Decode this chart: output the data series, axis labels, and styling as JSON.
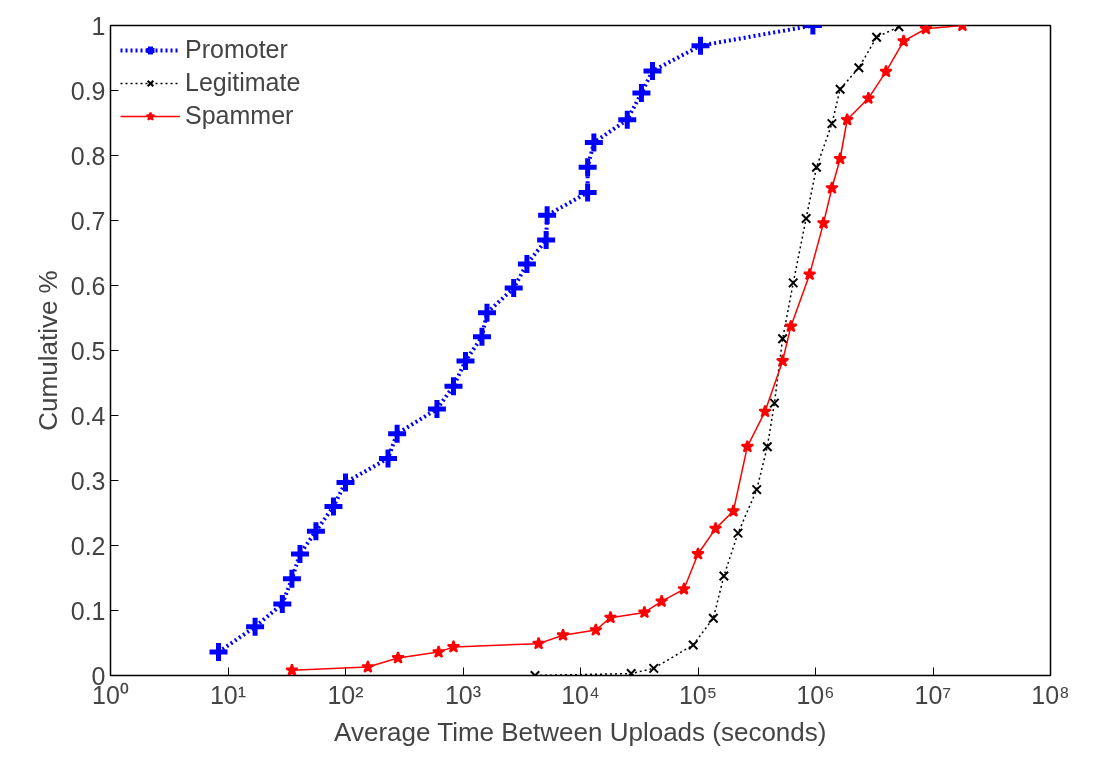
{
  "chart_data": {
    "type": "line",
    "xlabel": "Average Time Between Uploads (seconds)",
    "ylabel": "Cumulative %",
    "log": "x",
    "xlim": [
      1,
      100000000
    ],
    "xticks": [
      {
        "value": 1,
        "label": "10⁰"
      },
      {
        "value": 10,
        "label": "10¹"
      },
      {
        "value": 100,
        "label": "10²"
      },
      {
        "value": 1000,
        "label": "10³"
      },
      {
        "value": 10000,
        "label": "10⁴"
      },
      {
        "value": 100000,
        "label": "10⁵"
      },
      {
        "value": 1000000,
        "label": "10⁶"
      },
      {
        "value": 10000000,
        "label": "10⁷"
      },
      {
        "value": 100000000,
        "label": "10⁸"
      }
    ],
    "ylim": [
      0,
      1
    ],
    "yticks": [
      0,
      0.1,
      0.2,
      0.3,
      0.4,
      0.5,
      0.6,
      0.7,
      0.8,
      0.9,
      1
    ],
    "grid": false,
    "legend": "top left",
    "series": [
      {
        "name": "Promoter",
        "color": "#0000ff",
        "marker": "cross",
        "line_style": "dotted",
        "x": [
          8.3,
          17,
          29,
          35,
          41,
          56,
          79,
          100,
          230,
          275,
          600,
          830,
          1050,
          1450,
          1600,
          2700,
          3500,
          5100,
          5200,
          11500,
          11500,
          13000,
          25000,
          33000,
          41000,
          105000,
          950000
        ],
        "values": [
          0.036,
          0.075,
          0.11,
          0.149,
          0.187,
          0.222,
          0.26,
          0.297,
          0.334,
          0.372,
          0.41,
          0.445,
          0.484,
          0.521,
          0.558,
          0.596,
          0.633,
          0.67,
          0.708,
          0.743,
          0.782,
          0.82,
          0.855,
          0.896,
          0.93,
          0.969,
          1.0
        ]
      },
      {
        "name": "Legitimate",
        "color": "#000000",
        "marker": "x",
        "line_style": "dotted",
        "x": [
          4100,
          27000,
          42000,
          91000,
          135000,
          166000,
          219000,
          316000,
          389000,
          447000,
          525000,
          646000,
          832000,
          1020000,
          1380000,
          1620000,
          2340000,
          3310000,
          5130000
        ],
        "values": [
          0.0,
          0.003,
          0.011,
          0.047,
          0.088,
          0.153,
          0.219,
          0.286,
          0.352,
          0.419,
          0.518,
          0.604,
          0.703,
          0.782,
          0.849,
          0.902,
          0.935,
          0.982,
          0.998
        ]
      },
      {
        "name": "Spammer",
        "color": "#ff0000",
        "marker": "star",
        "line_style": "solid",
        "x": [
          35,
          155,
          280,
          620,
          830,
          4400,
          7100,
          13500,
          18000,
          35000,
          49000,
          76000,
          100000,
          141000,
          200000,
          263000,
          372000,
          525000,
          617000,
          891000,
          1170000,
          1380000,
          1620000,
          1860000,
          2820000,
          3980000,
          5620000,
          8710000,
          17800000
        ],
        "values": [
          0.008,
          0.013,
          0.027,
          0.036,
          0.044,
          0.049,
          0.062,
          0.07,
          0.089,
          0.097,
          0.114,
          0.133,
          0.187,
          0.226,
          0.253,
          0.352,
          0.406,
          0.484,
          0.537,
          0.617,
          0.696,
          0.75,
          0.795,
          0.855,
          0.888,
          0.929,
          0.976,
          0.995,
          1.0
        ]
      }
    ]
  }
}
